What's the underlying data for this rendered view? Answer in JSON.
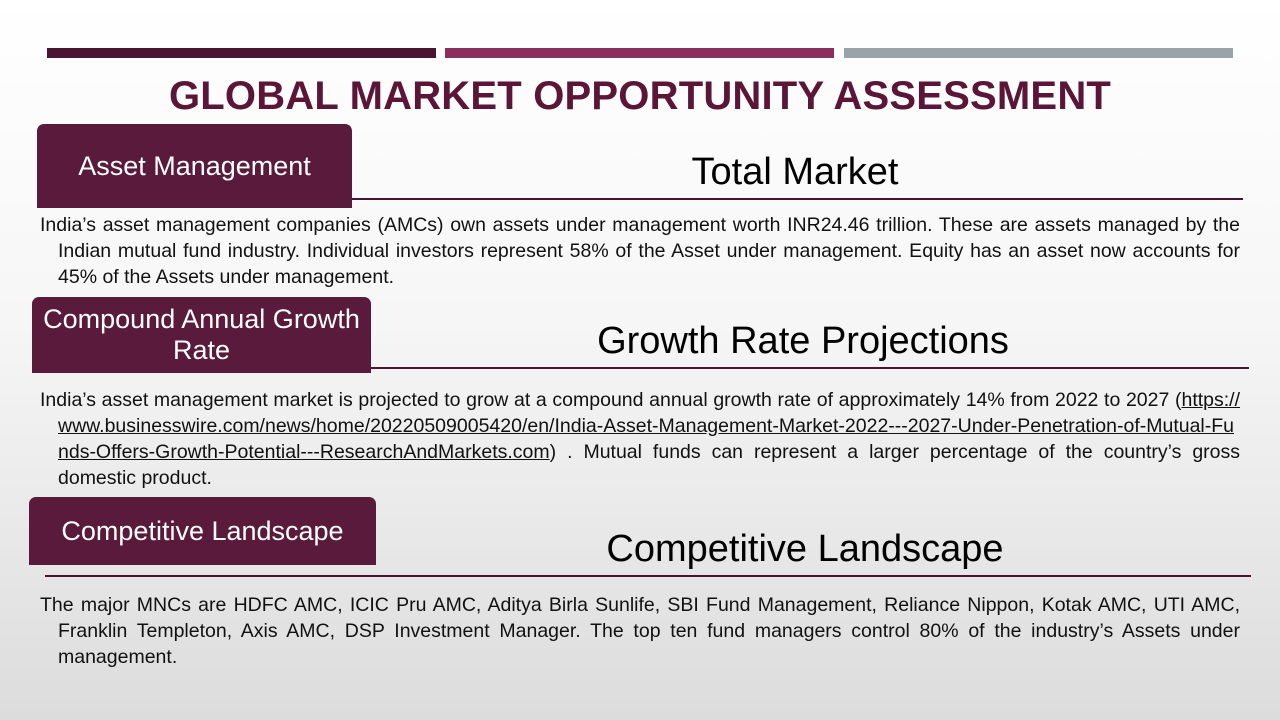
{
  "title": "GLOBAL MARKET OPPORTUNITY ASSESSMENT",
  "colors": {
    "bar_dark": "#4a1532",
    "bar_magenta": "#8b2e5e",
    "bar_gray": "#9aa3aa",
    "tab_fill": "#5a1a3c",
    "title_text": "#5a1537"
  },
  "sections": [
    {
      "tab": "Asset Management",
      "heading": "Total Market",
      "body": "India’s asset management companies (AMCs) own assets under management worth INR24.46 trillion.  These are assets managed by the Indian mutual fund industry.  Individual investors represent 58% of the Asset under management. Equity has an asset now accounts for 45% of the Assets under management."
    },
    {
      "tab": "Compound Annual Growth Rate",
      "heading": "Growth Rate Projections",
      "body_before": "India’s asset management market is projected to grow at a compound annual growth rate of approximately 14% from 2022 to 2027 (",
      "link": "https://www.businesswire.com/news/home/20220509005420/en/India-Asset-Management-Market-2022---2027-Under-Penetration-of-Mutual-Funds-Offers-Growth-Potential---ResearchAndMarkets.com",
      "body_after": ") . Mutual funds can represent a larger percentage of the country’s gross domestic product."
    },
    {
      "tab": "Competitive Landscape",
      "heading": "Competitive Landscape",
      "body": "The major MNCs are HDFC AMC, ICIC Pru AMC, Aditya Birla Sunlife, SBI Fund Management, Reliance Nippon, Kotak AMC, UTI AMC, Franklin Templeton, Axis AMC, DSP Investment Manager. The top ten fund managers control 80% of the industry’s Assets under management."
    }
  ]
}
